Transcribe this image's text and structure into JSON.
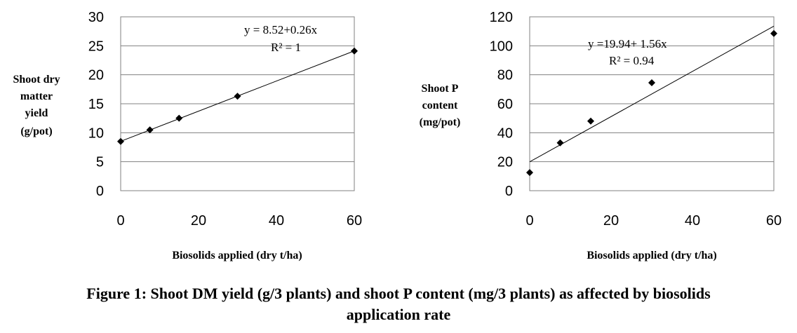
{
  "chart_data": [
    {
      "type": "scatter",
      "title": "",
      "ylabel": [
        "Shoot dry",
        "matter",
        "yield",
        "(g/pot)"
      ],
      "xlabel": "Biosolids applied (dry  t/ha)",
      "xlim": [
        0,
        60
      ],
      "ylim": [
        0,
        30
      ],
      "xticks": [
        "0",
        "20",
        "40",
        "60"
      ],
      "yticks": [
        "0",
        "5",
        "10",
        "15",
        "20",
        "25",
        "30"
      ],
      "grid": "horizontal",
      "series": [
        {
          "x": [
            0,
            7.5,
            15,
            30,
            60
          ],
          "y": [
            8.5,
            10.5,
            12.5,
            16.3,
            24.1
          ]
        }
      ],
      "trendline": {
        "intercept": 8.52,
        "slope": 0.26
      },
      "equation": "y = 8.52+0.26x",
      "r2": "R² = 1"
    },
    {
      "type": "scatter",
      "title": "",
      "ylabel": [
        "Shoot P",
        "content",
        "(mg/pot)"
      ],
      "xlabel": "Biosolids applied (dry  t/ha)",
      "xlim": [
        0,
        60
      ],
      "ylim": [
        0,
        120
      ],
      "xticks": [
        "0",
        "20",
        "40",
        "60"
      ],
      "yticks": [
        "0",
        "20",
        "40",
        "60",
        "80",
        "100",
        "120"
      ],
      "grid": "horizontal",
      "series": [
        {
          "x": [
            0,
            7.5,
            15,
            30,
            60
          ],
          "y": [
            12.5,
            33,
            48,
            74.5,
            108.5
          ]
        }
      ],
      "trendline": {
        "intercept": 19.94,
        "slope": 1.56
      },
      "equation": "y =19.94+ 1.56x",
      "r2": "R² = 0.94"
    }
  ],
  "caption": {
    "line1": "Figure 1: Shoot DM yield (g/3 plants) and shoot P content (mg/3 plants) as affected by biosolids",
    "line2": "application rate"
  }
}
